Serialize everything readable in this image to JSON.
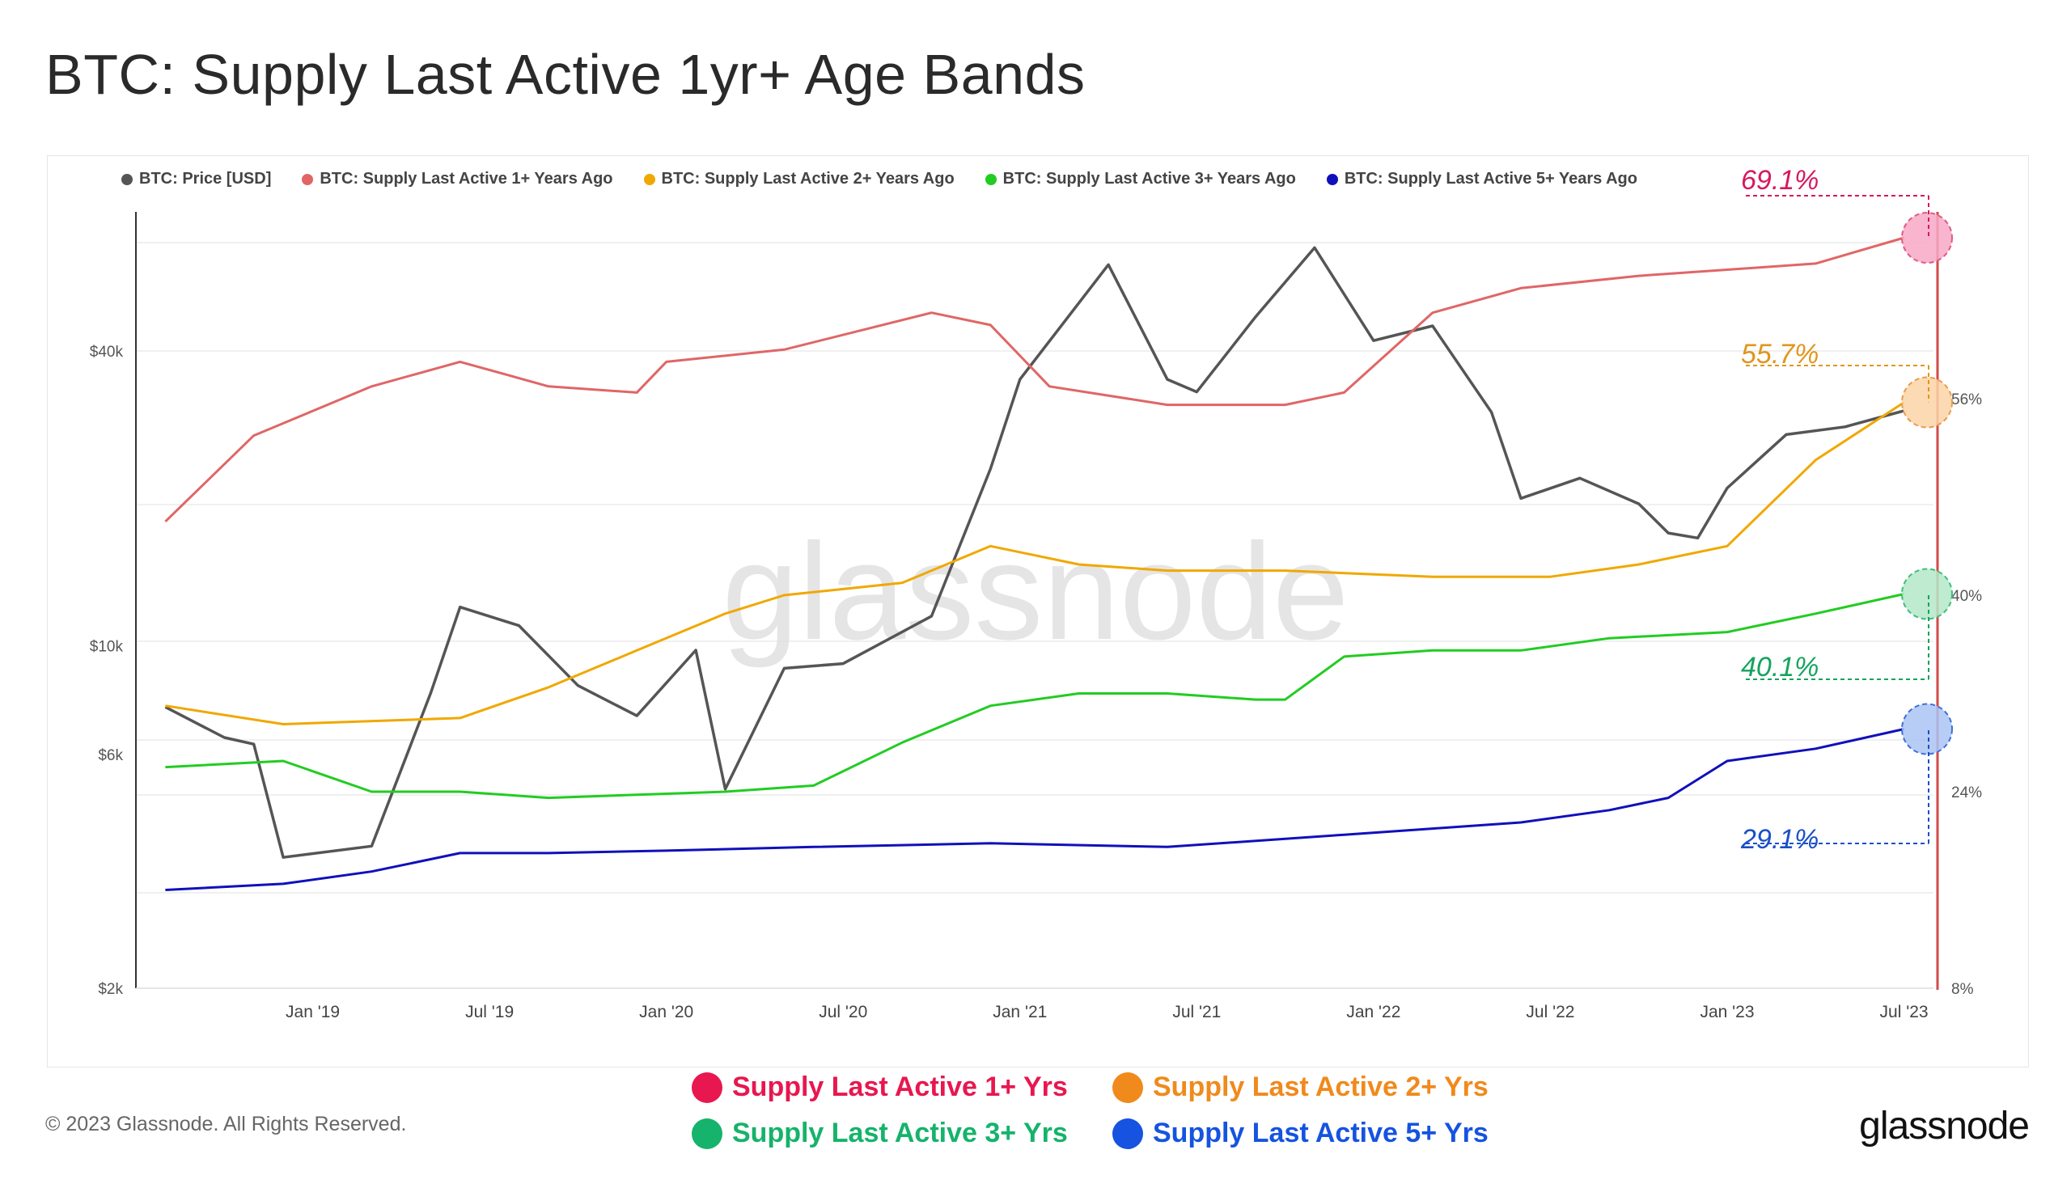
{
  "title": "BTC: Supply Last Active 1yr+ Age Bands",
  "copyright": "© 2023 Glassnode. All Rights Reserved.",
  "brand": "glassnode",
  "watermark": "glassnode",
  "legend": [
    {
      "label": "BTC: Price [USD]",
      "color": "#555555"
    },
    {
      "label": "BTC: Supply Last Active 1+ Years Ago",
      "color": "#e06666"
    },
    {
      "label": "BTC: Supply Last Active 2+ Years Ago",
      "color": "#f0a800"
    },
    {
      "label": "BTC: Supply Last Active 3+ Years Ago",
      "color": "#22cc22"
    },
    {
      "label": "BTC: Supply Last Active 5+ Years Ago",
      "color": "#1010bb"
    }
  ],
  "bottom_keys": [
    {
      "label": "Supply Last Active 1+ Yrs",
      "color": "#e8174f"
    },
    {
      "label": "Supply Last Active 2+ Yrs",
      "color": "#f08a1c"
    },
    {
      "label": "Supply Last Active 3+ Yrs",
      "color": "#15b36b"
    },
    {
      "label": "Supply Last Active 5+ Yrs",
      "color": "#1553e0"
    }
  ],
  "chart_data": {
    "type": "line",
    "title": "BTC: Supply Last Active 1yr+ Age Bands",
    "x_ticks": [
      "Jan '19",
      "Jul '19",
      "Jan '20",
      "Jul '20",
      "Jan '21",
      "Jul '21",
      "Jan '22",
      "Jul '22",
      "Jan '23",
      "Jul '23"
    ],
    "y_left_ticks": [
      "$40k",
      "$10k",
      "$6k",
      "$2k"
    ],
    "y_left_scale": "log",
    "y_right_ticks": [
      "56%",
      "40%",
      "24%",
      "8%"
    ],
    "y_right_range": [
      8,
      64
    ],
    "grid": true,
    "legend_position": "top",
    "series": [
      {
        "name": "BTC: Price [USD]",
        "axis": "left",
        "color": "#555555",
        "x": [
          "2018-08",
          "2018-10",
          "2018-11",
          "2018-12",
          "2019-03",
          "2019-05",
          "2019-06",
          "2019-08",
          "2019-10",
          "2019-12",
          "2020-02",
          "2020-03",
          "2020-05",
          "2020-07",
          "2020-10",
          "2020-12",
          "2021-01",
          "2021-04",
          "2021-06",
          "2021-07",
          "2021-09",
          "2021-11",
          "2022-01",
          "2022-03",
          "2022-05",
          "2022-06",
          "2022-08",
          "2022-10",
          "2022-11",
          "2022-12",
          "2023-01",
          "2023-03",
          "2023-05",
          "2023-07"
        ],
        "y": [
          7500,
          6500,
          6300,
          3700,
          3900,
          8000,
          12000,
          11000,
          8300,
          7200,
          9800,
          5100,
          9000,
          9200,
          11500,
          23000,
          35000,
          60000,
          35000,
          33000,
          47000,
          65000,
          42000,
          45000,
          30000,
          20000,
          22000,
          19500,
          17000,
          16600,
          21000,
          27000,
          28000,
          30200
        ]
      },
      {
        "name": "BTC: Supply Last Active 1+ Years Ago",
        "axis": "right",
        "color": "#e06666",
        "x": [
          "2018-08",
          "2018-11",
          "2019-03",
          "2019-06",
          "2019-09",
          "2019-12",
          "2020-01",
          "2020-05",
          "2020-10",
          "2020-12",
          "2021-02",
          "2021-06",
          "2021-10",
          "2021-12",
          "2022-03",
          "2022-06",
          "2022-10",
          "2023-01",
          "2023-04",
          "2023-07"
        ],
        "y": [
          46,
          53,
          57,
          59,
          57,
          56.5,
          59,
          60,
          63,
          62,
          57,
          55.5,
          55.5,
          56.5,
          63,
          65,
          66,
          66.5,
          67,
          69.1
        ]
      },
      {
        "name": "BTC: Supply Last Active 2+ Years Ago",
        "axis": "right",
        "color": "#f0a800",
        "x": [
          "2018-08",
          "2018-12",
          "2019-06",
          "2019-09",
          "2019-12",
          "2020-03",
          "2020-05",
          "2020-09",
          "2020-12",
          "2021-03",
          "2021-06",
          "2021-10",
          "2022-03",
          "2022-07",
          "2022-10",
          "2023-01",
          "2023-04",
          "2023-07"
        ],
        "y": [
          31,
          29.5,
          30,
          32.5,
          35.5,
          38.5,
          40,
          41,
          44,
          42.5,
          42,
          42,
          41.5,
          41.5,
          42.5,
          44,
          51,
          55.7
        ]
      },
      {
        "name": "BTC: Supply Last Active 3+ Years Ago",
        "axis": "right",
        "color": "#22cc22",
        "x": [
          "2018-08",
          "2018-12",
          "2019-03",
          "2019-06",
          "2019-09",
          "2020-03",
          "2020-06",
          "2020-09",
          "2020-12",
          "2021-03",
          "2021-06",
          "2021-09",
          "2021-10",
          "2021-12",
          "2022-03",
          "2022-06",
          "2022-09",
          "2023-01",
          "2023-04",
          "2023-07"
        ],
        "y": [
          26,
          26.5,
          24,
          24,
          23.5,
          24,
          24.5,
          28,
          31,
          32,
          32,
          31.5,
          31.5,
          35,
          35.5,
          35.5,
          36.5,
          37,
          38.5,
          40.1
        ]
      },
      {
        "name": "BTC: Supply Last Active 5+ Years Ago",
        "axis": "right",
        "color": "#1010bb",
        "x": [
          "2018-08",
          "2018-12",
          "2019-03",
          "2019-06",
          "2019-09",
          "2020-01",
          "2020-06",
          "2020-12",
          "2021-06",
          "2021-12",
          "2022-03",
          "2022-06",
          "2022-09",
          "2022-11",
          "2023-01",
          "2023-04",
          "2023-07"
        ],
        "y": [
          16,
          16.5,
          17.5,
          19,
          19,
          19.2,
          19.5,
          19.8,
          19.5,
          20.5,
          21,
          21.5,
          22.5,
          23.5,
          26.5,
          27.5,
          29.1
        ]
      }
    ],
    "annotations": [
      {
        "text": "69.1%",
        "color": "#d6185f"
      },
      {
        "text": "55.7%",
        "color": "#e0961b"
      },
      {
        "text": "40.1%",
        "color": "#15a35e"
      },
      {
        "text": "29.1%",
        "color": "#1a4fc8"
      }
    ]
  }
}
